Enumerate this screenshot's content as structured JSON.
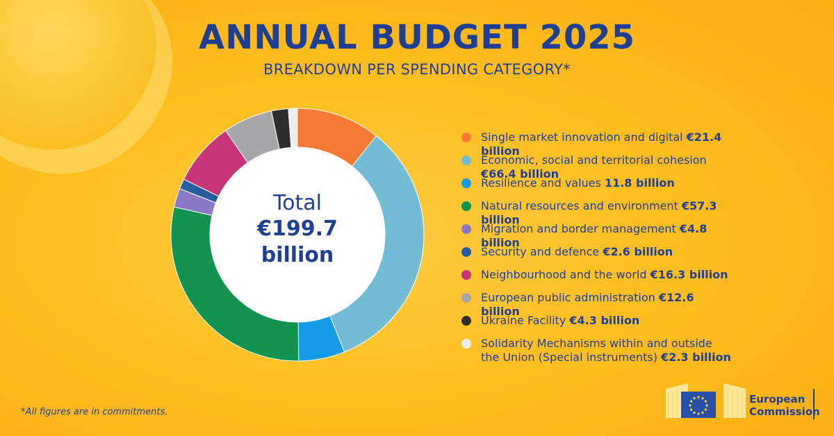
{
  "title": "ANNUAL BUDGET 2025",
  "subtitle": "BREAKDOWN PER SPENDING CATEGORY*",
  "center": {
    "label": "Total",
    "value": "€199.7 billion"
  },
  "footnote": "*All figures are in commitments.",
  "logo": {
    "line1": "European",
    "line2": "Commission"
  },
  "colors": {
    "text": "#1f3f95",
    "background": "#ffbe1f"
  },
  "chart_data": {
    "type": "pie",
    "hole": true,
    "total": 199.7,
    "unit": "billion",
    "series": [
      {
        "label": "Single market innovation and digital",
        "amount_text": "€21.4 billion",
        "value": 21.4,
        "color": "#f77a33"
      },
      {
        "label": "Economic, social and territorial cohesion",
        "amount_text": "€66.4 billion",
        "value": 66.4,
        "color": "#72bbd4"
      },
      {
        "label": "Resilience and values",
        "amount_text": "11.8 billion",
        "value": 11.8,
        "color": "#169be6"
      },
      {
        "label": "Natural resources and environment",
        "amount_text": "€57.3 billion",
        "value": 57.3,
        "color": "#129350"
      },
      {
        "label": "Migration and border management",
        "amount_text": "€4.8 billion",
        "value": 4.8,
        "color": "#8b76c8"
      },
      {
        "label": "Security and defence",
        "amount_text": "€2.6 billion",
        "value": 2.6,
        "color": "#285ea1"
      },
      {
        "label": "Neighbourhood and the world",
        "amount_text": "€16.3 billion",
        "value": 16.3,
        "color": "#c53578"
      },
      {
        "label": "European public administration",
        "amount_text": "€12.6 billion",
        "value": 12.6,
        "color": "#a7a7a9"
      },
      {
        "label": "Ukraine Facility",
        "amount_text": "€4.3 billion",
        "value": 4.3,
        "color": "#2e2e2e"
      },
      {
        "label": "Solidarity Mechanisms within and outside the Union (Special instruments)",
        "amount_text": "€2.3 billion",
        "value": 2.3,
        "color": "#ededed"
      }
    ]
  }
}
